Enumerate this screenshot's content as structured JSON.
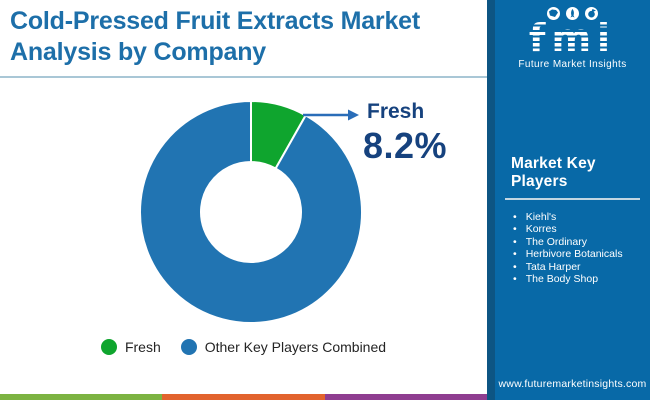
{
  "header": {
    "title_lines": [
      "Cold-Pressed Fruit Extracts Market",
      "Analysis by Company"
    ]
  },
  "chart_data": {
    "type": "pie",
    "subtype": "donut",
    "title": "Cold-Pressed Fruit Extracts Market Analysis by Company",
    "categories": [
      "Fresh",
      "Other Key Players Combined"
    ],
    "values": [
      8.2,
      91.8
    ],
    "unit": "percent",
    "colors": [
      "#0fa52e",
      "#2174b2"
    ],
    "start_angle_deg": 0,
    "direction": "clockwise",
    "legend_position": "bottom",
    "callout": {
      "label": "Fresh",
      "value": "8.2%"
    }
  },
  "sidebar": {
    "background": "#0869a7",
    "logo": {
      "brand": "fmi",
      "subtitle": "Future Market Insights",
      "icons": [
        "map-icon",
        "rocket-icon",
        "globe-plane-icon"
      ]
    },
    "key_players": {
      "title": "Market Key Players",
      "items": [
        "Kiehl's",
        "Korres",
        "The Ordinary",
        "Herbivore Botanicals",
        "Tata Harper",
        "The Body Shop"
      ]
    },
    "website": "www.futuremarketinsights.com"
  },
  "footer": {
    "stripe_colors": [
      "#7cb342",
      "#e2632d",
      "#8f3d90"
    ]
  }
}
